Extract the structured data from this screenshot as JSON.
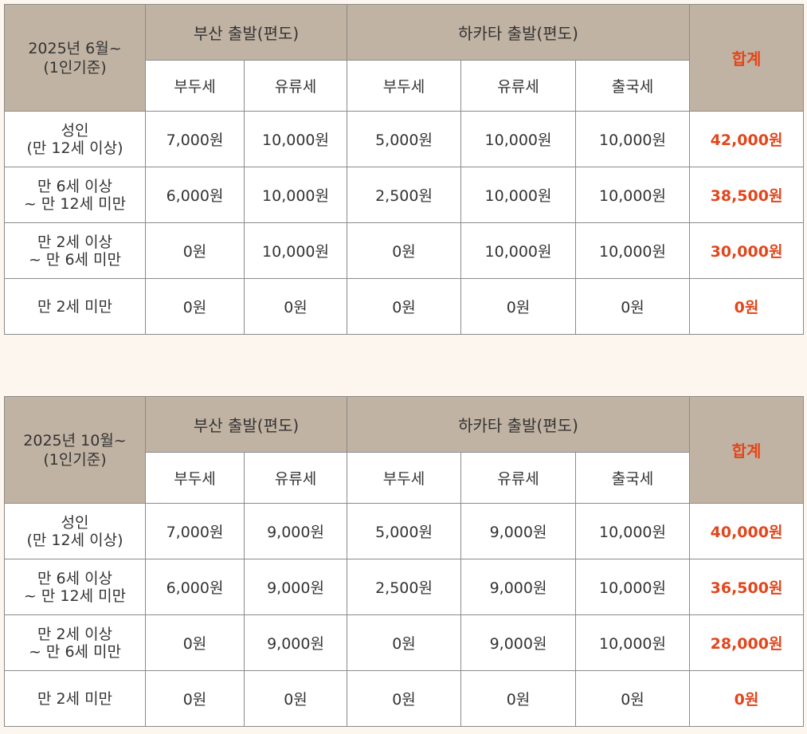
{
  "tables": [
    {
      "period": "2025년 6월~",
      "basis": "(1인기준)",
      "group_busan": "부산 출발(편도)",
      "group_hakata": "하카타 출발(편도)",
      "total_header": "합계",
      "sub_headers": [
        "부두세",
        "유류세",
        "부두세",
        "유류세",
        "출국세"
      ],
      "rows": [
        {
          "label1": "성인",
          "label2": "(만 12세 이상)",
          "values": [
            "7,000원",
            "10,000원",
            "5,000원",
            "10,000원",
            "10,000원"
          ],
          "total": "42,000원"
        },
        {
          "label1": "만 6세 이상",
          "label2": "~ 만 12세 미만",
          "values": [
            "6,000원",
            "10,000원",
            "2,500원",
            "10,000원",
            "10,000원"
          ],
          "total": "38,500원"
        },
        {
          "label1": "만 2세 이상",
          "label2": "~ 만 6세 미만",
          "values": [
            "0원",
            "10,000원",
            "0원",
            "10,000원",
            "10,000원"
          ],
          "total": "30,000원"
        },
        {
          "label1": "만 2세 미만",
          "label2": "",
          "values": [
            "0원",
            "0원",
            "0원",
            "0원",
            "0원"
          ],
          "total": "0원"
        }
      ]
    },
    {
      "period": "2025년 10월~",
      "basis": "(1인기준)",
      "group_busan": "부산 출발(편도)",
      "group_hakata": "하카타 출발(편도)",
      "total_header": "합계",
      "sub_headers": [
        "부두세",
        "유류세",
        "부두세",
        "유류세",
        "출국세"
      ],
      "rows": [
        {
          "label1": "성인",
          "label2": "(만 12세 이상)",
          "values": [
            "7,000원",
            "9,000원",
            "5,000원",
            "9,000원",
            "10,000원"
          ],
          "total": "40,000원"
        },
        {
          "label1": "만 6세 이상",
          "label2": "~ 만 12세 미만",
          "values": [
            "6,000원",
            "9,000원",
            "2,500원",
            "9,000원",
            "10,000원"
          ],
          "total": "36,500원"
        },
        {
          "label1": "만 2세 이상",
          "label2": "~ 만 6세 미만",
          "values": [
            "0원",
            "9,000원",
            "0원",
            "9,000원",
            "10,000원"
          ],
          "total": "28,000원"
        },
        {
          "label1": "만 2세 미만",
          "label2": "",
          "values": [
            "0원",
            "0원",
            "0원",
            "0원",
            "0원"
          ],
          "total": "0원"
        }
      ]
    }
  ],
  "colors": {
    "header_bg": "#c1b3a3",
    "total_red": "#e2461b",
    "page_bg": "#fdf6ef",
    "border": "#8a8a8a"
  }
}
